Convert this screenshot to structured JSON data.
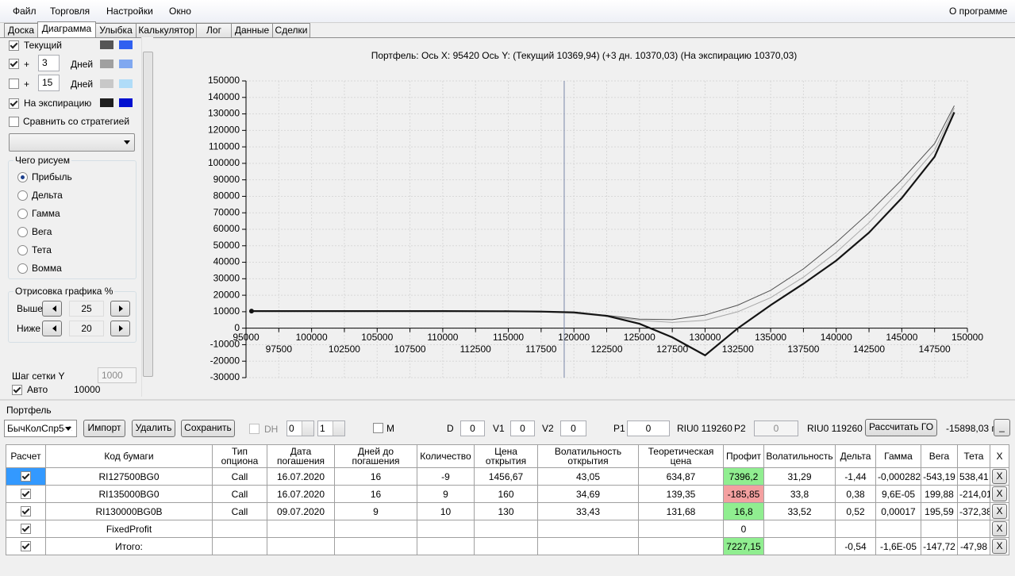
{
  "menu": {
    "items": [
      "Файл",
      "Торговля",
      "Настройки",
      "Окно"
    ],
    "about": "О программе"
  },
  "tabs": {
    "items": [
      "Доска",
      "Диаграмма",
      "Улыбка",
      "Калькулятор",
      "Лог",
      "Данные",
      "Сделки"
    ],
    "active": 1
  },
  "left_panel": {
    "current": {
      "label": "Текущий",
      "checked": true,
      "colors": [
        "#555555",
        "#3060f0"
      ]
    },
    "plus1": {
      "sign": "+",
      "days": "3",
      "unit": "Дней",
      "checked": true,
      "colors": [
        "#a0a0a0",
        "#80a8f0"
      ]
    },
    "plus2": {
      "sign": "+",
      "days": "15",
      "unit": "Дней",
      "checked": false,
      "colors": [
        "#c8c8c8",
        "#b0dcf8"
      ]
    },
    "expiry": {
      "label": "На экспирацию",
      "checked": true,
      "colors": [
        "#202020",
        "#0010d0"
      ]
    },
    "compare": {
      "label": "Сравнить со стратегией",
      "checked": false
    },
    "draw_group": {
      "title": "Чего рисуем",
      "options": [
        "Прибыль",
        "Дельта",
        "Гамма",
        "Вега",
        "Тета",
        "Вомма"
      ],
      "selected": 0
    },
    "range_group": {
      "title": "Отрисовка графика %",
      "above_label": "Выше",
      "above": "25",
      "below_label": "Ниже",
      "below": "20"
    },
    "grid_step": {
      "label": "Шаг сетки Y",
      "value": "1000"
    },
    "auto": {
      "label": "Авто",
      "checked": true,
      "value": "10000"
    }
  },
  "chart_data": {
    "type": "line",
    "title": "Портфель: Ось X: 95420 Ось Y:  (Текущий 10369,94)  (+3 дн. 10370,03)  (На экспирацию 10370,03)",
    "x": [
      95420,
      100000,
      105000,
      110000,
      115000,
      117500,
      120000,
      122500,
      125000,
      127500,
      130000,
      132500,
      135000,
      137500,
      140000,
      142500,
      145000,
      147500,
      149000
    ],
    "series": [
      {
        "color": "#505050",
        "line_width": 1,
        "values": [
          10370,
          10370,
          10360,
          10330,
          10200,
          9900,
          9300,
          7800,
          5500,
          5200,
          8000,
          14000,
          23000,
          36000,
          52000,
          70000,
          90000,
          112000,
          135000
        ]
      },
      {
        "color": "#a8a8a8",
        "line_width": 1,
        "values": [
          10370,
          10370,
          10360,
          10320,
          10150,
          9800,
          9000,
          7200,
          4800,
          3500,
          4800,
          10000,
          18500,
          31000,
          46000,
          64000,
          85000,
          108000,
          133500
        ]
      },
      {
        "color": "#141414",
        "line_width": 2.2,
        "values": [
          10370,
          10370,
          10370,
          10370,
          10300,
          10100,
          9600,
          7500,
          2700,
          -5500,
          -16500,
          0,
          14000,
          27000,
          41000,
          58000,
          79000,
          104000,
          131000
        ]
      }
    ],
    "marker_x": 119260,
    "marker_color": "#7886a8",
    "xlim": [
      95000,
      150000
    ],
    "ylim": [
      -30000,
      150000
    ],
    "xticks": [
      95000,
      97500,
      100000,
      102500,
      105000,
      107500,
      110000,
      112500,
      115000,
      117500,
      120000,
      122500,
      125000,
      127500,
      130000,
      132500,
      135000,
      137500,
      140000,
      142500,
      145000,
      147500,
      150000
    ],
    "yticks": [
      -30000,
      -20000,
      -10000,
      0,
      10000,
      20000,
      30000,
      40000,
      50000,
      60000,
      70000,
      80000,
      90000,
      100000,
      110000,
      120000,
      130000,
      140000,
      150000
    ],
    "grid": true
  },
  "portfolio": {
    "title": "Портфель",
    "strategy": "БычКолСпр5-с",
    "buttons": [
      "Импорт",
      "Удалить",
      "Сохранить"
    ],
    "dh": "DH",
    "spin1": "0",
    "spin2": "1",
    "m": "M",
    "d_label": "D",
    "d": "0",
    "v1_label": "V1",
    "v1": "0",
    "v2_label": "V2",
    "v2": "0",
    "p1_label": "P1",
    "p1": "0",
    "p1_asset": "RIU0 119260",
    "p2_label": "P2",
    "p2": "0",
    "p2_asset": "RIU0 119260",
    "calc": "Рассчитать ГО",
    "go": "-15898,03 п",
    "minimize": "_"
  },
  "table": {
    "headers": [
      "Расчет",
      "Код бумаги",
      "Тип опциона",
      "Дата погашения",
      "Дней до погашения",
      "Количество",
      "Цена открытия",
      "Волатильность открытия",
      "Теоретическая цена",
      "Профит",
      "Волатильность",
      "Дельта",
      "Гамма",
      "Вега",
      "Тета",
      "X"
    ],
    "selected_row": 0,
    "rows": [
      {
        "checked": true,
        "cells": [
          "RI127500BG0",
          "Call",
          "16.07.2020",
          "16",
          "-9",
          "1456,67",
          "43,05",
          "634,87",
          "7396,2",
          "31,29",
          "-1,44",
          "-0,000282",
          "-543,19",
          "538,41",
          "X"
        ]
      },
      {
        "checked": true,
        "cells": [
          "RI135000BG0",
          "Call",
          "16.07.2020",
          "16",
          "9",
          "160",
          "34,69",
          "139,35",
          "-185,85",
          "33,8",
          "0,38",
          "9,6E-05",
          "199,88",
          "-214,01",
          "X"
        ]
      },
      {
        "checked": true,
        "cells": [
          "RI130000BG0B",
          "Call",
          "09.07.2020",
          "9",
          "10",
          "130",
          "33,43",
          "131,68",
          "16,8",
          "33,52",
          "0,52",
          "0,00017",
          "195,59",
          "-372,38",
          "X"
        ]
      },
      {
        "checked": true,
        "cells": [
          "FixedProfit",
          null,
          null,
          null,
          null,
          null,
          null,
          null,
          "0",
          null,
          null,
          null,
          null,
          null,
          "X"
        ]
      },
      {
        "checked": true,
        "cells": [
          "Итого:",
          null,
          null,
          null,
          null,
          null,
          null,
          null,
          "7227,15",
          null,
          "-0,54",
          "-1,6E-05",
          "-147,72",
          "-47,98",
          "X"
        ]
      }
    ]
  }
}
